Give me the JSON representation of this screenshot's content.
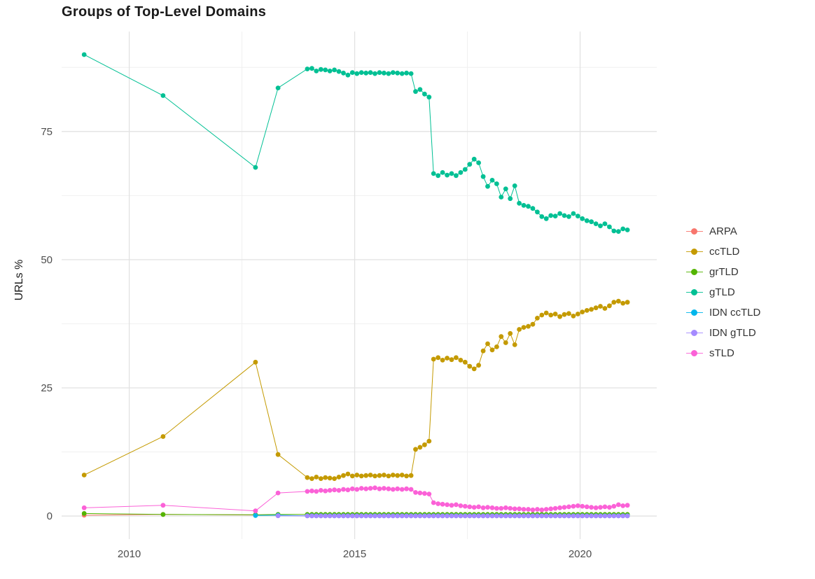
{
  "chart_data": {
    "type": "line",
    "title": "Groups of Top-Level Domains",
    "xlabel": "",
    "ylabel": "URLs %",
    "xlim": [
      2008.5,
      2021.7
    ],
    "ylim": [
      -4.5,
      94.5
    ],
    "grid": true,
    "legend_position": "right",
    "x_ticks": [
      {
        "v": 2010,
        "label": "2010"
      },
      {
        "v": 2015,
        "label": "2015"
      },
      {
        "v": 2020,
        "label": "2020"
      }
    ],
    "y_ticks": [
      {
        "v": 0,
        "label": "0"
      },
      {
        "v": 25,
        "label": "25"
      },
      {
        "v": 50,
        "label": "50"
      },
      {
        "v": 75,
        "label": "75"
      }
    ],
    "x_minor": [
      2012.5,
      2017.5
    ],
    "y_minor": [
      12.5,
      37.5,
      62.5,
      87.5
    ],
    "x": [
      2009.0,
      2010.75,
      2012.8,
      2013.3,
      2013.95,
      2014.05,
      2014.15,
      2014.25,
      2014.35,
      2014.45,
      2014.55,
      2014.65,
      2014.75,
      2014.85,
      2014.95,
      2015.05,
      2015.15,
      2015.25,
      2015.35,
      2015.45,
      2015.55,
      2015.65,
      2015.75,
      2015.85,
      2015.95,
      2016.05,
      2016.15,
      2016.25,
      2016.35,
      2016.45,
      2016.55,
      2016.65,
      2016.75,
      2016.85,
      2016.95,
      2017.05,
      2017.15,
      2017.25,
      2017.35,
      2017.45,
      2017.55,
      2017.65,
      2017.75,
      2017.85,
      2017.95,
      2018.05,
      2018.15,
      2018.25,
      2018.35,
      2018.45,
      2018.55,
      2018.65,
      2018.75,
      2018.85,
      2018.95,
      2019.05,
      2019.15,
      2019.25,
      2019.35,
      2019.45,
      2019.55,
      2019.65,
      2019.75,
      2019.85,
      2019.95,
      2020.05,
      2020.15,
      2020.25,
      2020.35,
      2020.45,
      2020.55,
      2020.65,
      2020.75,
      2020.85,
      2020.95,
      2021.05
    ],
    "series": [
      {
        "name": "ARPA",
        "color": "#F8766D",
        "values": [
          0.15,
          0.3,
          0.2,
          0.1,
          0.05,
          0.05,
          0.05,
          0.05,
          0.05,
          0.05,
          0.05,
          0.05,
          0.05,
          0.05,
          0.05,
          0.05,
          0.05,
          0.05,
          0.05,
          0.05,
          0.05,
          0.05,
          0.05,
          0.05,
          0.05,
          0.05,
          0.05,
          0.05,
          0.05,
          0.05,
          0.05,
          0.05,
          0.05,
          0.05,
          0.05,
          0.05,
          0.05,
          0.05,
          0.05,
          0.05,
          0.05,
          0.05,
          0.05,
          0.05,
          0.05,
          0.05,
          0.05,
          0.05,
          0.05,
          0.05,
          0.05,
          0.05,
          0.05,
          0.05,
          0.05,
          0.05,
          0.05,
          0.05,
          0.05,
          0.05,
          0.05,
          0.05,
          0.05,
          0.05,
          0.05,
          0.05,
          0.05,
          0.05,
          0.05,
          0.05,
          0.05,
          0.05,
          0.05,
          0.05,
          0.05,
          0.05
        ]
      },
      {
        "name": "ccTLD",
        "color": "#C49A00",
        "values": [
          8,
          15.5,
          30,
          12,
          7.5,
          7.3,
          7.6,
          7.3,
          7.5,
          7.4,
          7.3,
          7.6,
          7.9,
          8.2,
          7.8,
          8.0,
          7.8,
          7.9,
          8.0,
          7.8,
          7.9,
          8.0,
          7.8,
          8.0,
          7.9,
          8.0,
          7.8,
          7.9,
          13.0,
          13.4,
          13.9,
          14.6,
          30.6,
          30.9,
          30.4,
          30.8,
          30.5,
          30.9,
          30.4,
          30.0,
          29.2,
          28.7,
          29.4,
          32.2,
          33.6,
          32.4,
          33.0,
          35.0,
          33.8,
          35.6,
          33.4,
          36.4,
          36.8,
          37.0,
          37.4,
          38.6,
          39.2,
          39.6,
          39.2,
          39.4,
          38.9,
          39.3,
          39.5,
          39.0,
          39.4,
          39.8,
          40.1,
          40.3,
          40.6,
          40.9,
          40.5,
          41.0,
          41.7,
          41.9,
          41.5,
          41.7
        ]
      },
      {
        "name": "grTLD",
        "color": "#53B400",
        "values": [
          0.5,
          0.3,
          0.25,
          0.3,
          0.3,
          0.3,
          0.3,
          0.3,
          0.3,
          0.3,
          0.3,
          0.3,
          0.3,
          0.3,
          0.3,
          0.3,
          0.3,
          0.3,
          0.3,
          0.3,
          0.3,
          0.3,
          0.3,
          0.3,
          0.3,
          0.3,
          0.3,
          0.3,
          0.3,
          0.3,
          0.3,
          0.3,
          0.3,
          0.3,
          0.3,
          0.3,
          0.3,
          0.3,
          0.3,
          0.3,
          0.3,
          0.3,
          0.3,
          0.3,
          0.3,
          0.3,
          0.3,
          0.3,
          0.3,
          0.3,
          0.3,
          0.3,
          0.3,
          0.3,
          0.3,
          0.3,
          0.3,
          0.3,
          0.3,
          0.3,
          0.3,
          0.3,
          0.3,
          0.3,
          0.3,
          0.3,
          0.3,
          0.3,
          0.3,
          0.3,
          0.3,
          0.3,
          0.3,
          0.3,
          0.3,
          0.3
        ]
      },
      {
        "name": "gTLD",
        "color": "#00C094",
        "values": [
          90,
          82,
          68,
          83.5,
          87.2,
          87.3,
          86.8,
          87.1,
          87.0,
          86.8,
          87.0,
          86.7,
          86.4,
          86.0,
          86.5,
          86.3,
          86.5,
          86.4,
          86.5,
          86.3,
          86.5,
          86.4,
          86.3,
          86.5,
          86.4,
          86.3,
          86.4,
          86.3,
          82.8,
          83.2,
          82.3,
          81.7,
          66.8,
          66.4,
          67.0,
          66.5,
          66.8,
          66.4,
          67.0,
          67.6,
          68.6,
          69.6,
          68.9,
          66.2,
          64.3,
          65.5,
          64.8,
          62.2,
          63.8,
          61.9,
          64.4,
          61.0,
          60.6,
          60.4,
          60.0,
          59.3,
          58.4,
          58.0,
          58.6,
          58.5,
          59.0,
          58.6,
          58.4,
          59.0,
          58.5,
          58.0,
          57.6,
          57.4,
          57.0,
          56.6,
          57.0,
          56.4,
          55.6,
          55.5,
          56.0,
          55.8
        ]
      },
      {
        "name": "IDN ccTLD",
        "color": "#00B6EB",
        "values": [
          null,
          null,
          0.1,
          0.15,
          0.05,
          0.05,
          0.05,
          0.05,
          0.05,
          0.05,
          0.05,
          0.05,
          0.05,
          0.05,
          0.05,
          0.05,
          0.05,
          0.05,
          0.05,
          0.05,
          0.05,
          0.05,
          0.05,
          0.05,
          0.05,
          0.05,
          0.05,
          0.05,
          0.05,
          0.05,
          0.05,
          0.05,
          0.05,
          0.05,
          0.05,
          0.05,
          0.05,
          0.05,
          0.05,
          0.05,
          0.05,
          0.05,
          0.05,
          0.05,
          0.05,
          0.05,
          0.05,
          0.05,
          0.05,
          0.05,
          0.05,
          0.05,
          0.05,
          0.05,
          0.05,
          0.05,
          0.05,
          0.05,
          0.05,
          0.05,
          0.05,
          0.05,
          0.05,
          0.05,
          0.05,
          0.05,
          0.05,
          0.05,
          0.05,
          0.05,
          0.05,
          0.05,
          0.05,
          0.05,
          0.05,
          0.05
        ]
      },
      {
        "name": "IDN gTLD",
        "color": "#A58AFF",
        "values": [
          null,
          null,
          null,
          0.05,
          0.02,
          0.02,
          0.02,
          0.02,
          0.02,
          0.02,
          0.02,
          0.02,
          0.02,
          0.02,
          0.02,
          0.02,
          0.02,
          0.02,
          0.02,
          0.02,
          0.02,
          0.02,
          0.02,
          0.02,
          0.02,
          0.02,
          0.02,
          0.02,
          0.02,
          0.02,
          0.02,
          0.02,
          0.02,
          0.02,
          0.02,
          0.02,
          0.02,
          0.02,
          0.02,
          0.02,
          0.02,
          0.02,
          0.02,
          0.02,
          0.02,
          0.02,
          0.02,
          0.02,
          0.02,
          0.02,
          0.02,
          0.02,
          0.02,
          0.02,
          0.02,
          0.02,
          0.02,
          0.02,
          0.02,
          0.02,
          0.02,
          0.02,
          0.02,
          0.02,
          0.02,
          0.02,
          0.02,
          0.02,
          0.02,
          0.02,
          0.02,
          0.02,
          0.02,
          0.02,
          0.02,
          0.02
        ]
      },
      {
        "name": "sTLD",
        "color": "#FB61D7",
        "values": [
          1.6,
          2.1,
          1.0,
          4.5,
          4.8,
          4.9,
          4.8,
          5.0,
          4.9,
          5.0,
          5.1,
          5.0,
          5.2,
          5.1,
          5.3,
          5.2,
          5.4,
          5.3,
          5.4,
          5.5,
          5.3,
          5.4,
          5.3,
          5.2,
          5.3,
          5.2,
          5.3,
          5.2,
          4.6,
          4.5,
          4.4,
          4.3,
          2.6,
          2.4,
          2.3,
          2.2,
          2.1,
          2.2,
          2.0,
          1.9,
          1.8,
          1.7,
          1.8,
          1.6,
          1.7,
          1.6,
          1.5,
          1.5,
          1.6,
          1.5,
          1.4,
          1.4,
          1.3,
          1.3,
          1.2,
          1.3,
          1.2,
          1.3,
          1.4,
          1.5,
          1.6,
          1.7,
          1.8,
          1.9,
          2.0,
          1.9,
          1.8,
          1.7,
          1.6,
          1.7,
          1.8,
          1.7,
          1.9,
          2.2,
          2.0,
          2.1
        ]
      }
    ]
  }
}
